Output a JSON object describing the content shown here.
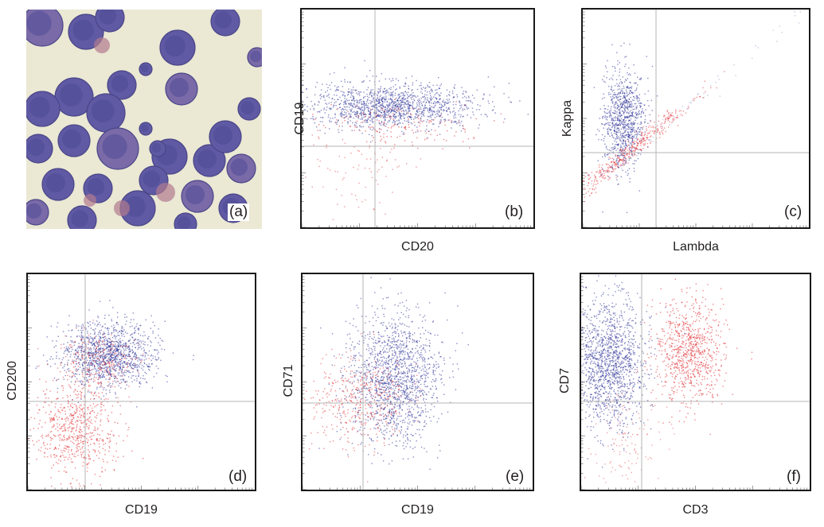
{
  "figure": {
    "panel_a": {
      "tag": "(a)",
      "description_icon": "blood-smear-micrograph"
    },
    "colors": {
      "population_blue": "#2a2f96",
      "population_red": "#e0242a",
      "gate_line": "#b5b5b5",
      "frame": "#1a1a1a"
    }
  },
  "chart_data": [
    {
      "id": "b",
      "type": "scatter",
      "tag": "(b)",
      "xlabel": "CD20",
      "ylabel": "CD19",
      "scale": "log",
      "grid": true
    },
    {
      "id": "c",
      "type": "scatter",
      "tag": "(c)",
      "xlabel": "Lambda",
      "ylabel": "Kappa",
      "scale": "log",
      "grid": true
    },
    {
      "id": "d",
      "type": "scatter",
      "tag": "(d)",
      "xlabel": "CD19",
      "ylabel": "CD200",
      "scale": "log",
      "grid": true
    },
    {
      "id": "e",
      "type": "scatter",
      "tag": "(e)",
      "xlabel": "CD19",
      "ylabel": "CD71",
      "scale": "log",
      "grid": true
    },
    {
      "id": "f",
      "type": "scatter",
      "tag": "(f)",
      "xlabel": "CD3",
      "ylabel": "CD7",
      "scale": "log",
      "grid": true
    }
  ]
}
